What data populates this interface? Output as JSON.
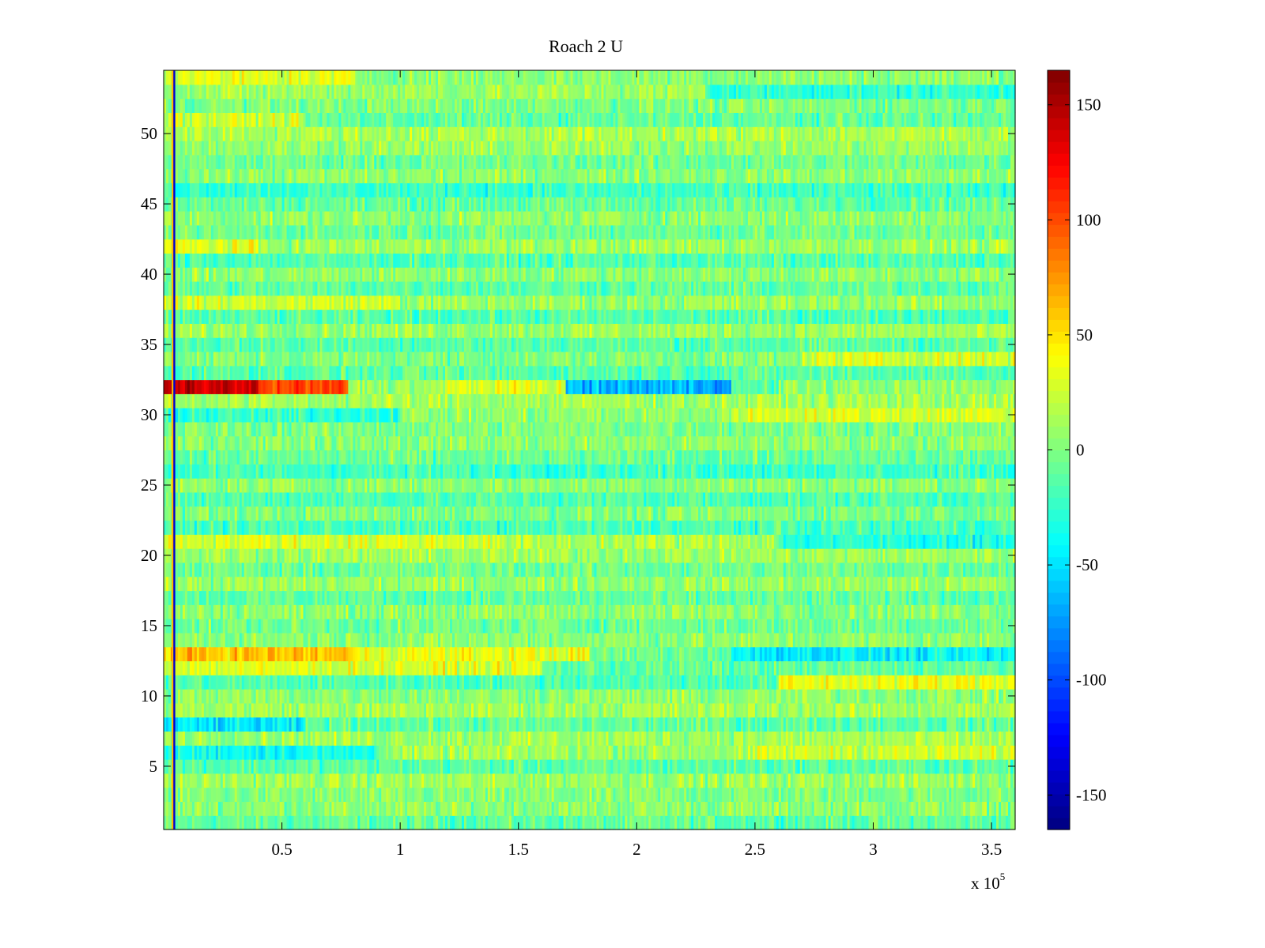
{
  "chart_data": {
    "type": "heatmap",
    "title": "Roach 2 U",
    "xlabel": "",
    "ylabel": "",
    "x_range": [
      0,
      360000
    ],
    "y_range": [
      0.5,
      54.5
    ],
    "x_ticks": [
      50000,
      100000,
      150000,
      200000,
      250000,
      300000,
      350000
    ],
    "x_tick_labels": [
      "0.5",
      "1",
      "1.5",
      "2",
      "2.5",
      "3",
      "3.5"
    ],
    "x_multiplier_label": "x 10",
    "x_multiplier_exponent": "5",
    "y_ticks": [
      5,
      10,
      15,
      20,
      25,
      30,
      35,
      40,
      45,
      50
    ],
    "y_tick_labels": [
      "5",
      "10",
      "15",
      "20",
      "25",
      "30",
      "35",
      "40",
      "45",
      "50"
    ],
    "colormap": "jet",
    "color_range": [
      -165,
      165
    ],
    "colorbar_ticks": [
      150,
      100,
      50,
      0,
      -50,
      -100,
      -150
    ],
    "colorbar_tick_labels": [
      "150",
      "100",
      "50",
      "0",
      "-50",
      "-100",
      "-150"
    ],
    "rows": 54,
    "columns": 360,
    "noise_amplitude": 34,
    "row_segments": [
      {
        "row": 54,
        "segments": [
          [
            0,
            80000,
            30
          ],
          [
            80000,
            360000,
            5
          ]
        ]
      },
      {
        "row": 53,
        "segments": [
          [
            0,
            230000,
            10
          ],
          [
            230000,
            360000,
            -25
          ]
        ]
      },
      {
        "row": 52,
        "segments": [
          [
            0,
            360000,
            0
          ]
        ]
      },
      {
        "row": 51,
        "segments": [
          [
            0,
            60000,
            25
          ],
          [
            60000,
            360000,
            -10
          ]
        ]
      },
      {
        "row": 50,
        "segments": [
          [
            0,
            360000,
            15
          ]
        ]
      },
      {
        "row": 49,
        "segments": [
          [
            0,
            360000,
            8
          ]
        ]
      },
      {
        "row": 48,
        "segments": [
          [
            0,
            360000,
            -5
          ]
        ]
      },
      {
        "row": 47,
        "segments": [
          [
            0,
            360000,
            5
          ]
        ]
      },
      {
        "row": 46,
        "segments": [
          [
            0,
            360000,
            -22
          ]
        ]
      },
      {
        "row": 45,
        "segments": [
          [
            0,
            360000,
            -8
          ]
        ]
      },
      {
        "row": 44,
        "segments": [
          [
            0,
            360000,
            5
          ]
        ]
      },
      {
        "row": 43,
        "segments": [
          [
            0,
            360000,
            -5
          ]
        ]
      },
      {
        "row": 42,
        "segments": [
          [
            0,
            40000,
            30
          ],
          [
            40000,
            360000,
            10
          ]
        ]
      },
      {
        "row": 41,
        "segments": [
          [
            0,
            360000,
            -15
          ]
        ]
      },
      {
        "row": 40,
        "segments": [
          [
            0,
            360000,
            5
          ]
        ]
      },
      {
        "row": 39,
        "segments": [
          [
            0,
            360000,
            -10
          ]
        ]
      },
      {
        "row": 38,
        "segments": [
          [
            0,
            100000,
            25
          ],
          [
            100000,
            360000,
            8
          ]
        ]
      },
      {
        "row": 37,
        "segments": [
          [
            0,
            360000,
            -15
          ]
        ]
      },
      {
        "row": 36,
        "segments": [
          [
            0,
            360000,
            10
          ]
        ]
      },
      {
        "row": 35,
        "segments": [
          [
            0,
            360000,
            -12
          ]
        ]
      },
      {
        "row": 34,
        "segments": [
          [
            0,
            270000,
            0
          ],
          [
            270000,
            360000,
            28
          ]
        ]
      },
      {
        "row": 33,
        "segments": [
          [
            0,
            360000,
            -12
          ]
        ]
      },
      {
        "row": 32,
        "segments": [
          [
            0,
            40000,
            140
          ],
          [
            40000,
            78000,
            100
          ],
          [
            78000,
            120000,
            10
          ],
          [
            120000,
            170000,
            30
          ],
          [
            170000,
            240000,
            -65
          ],
          [
            240000,
            260000,
            -15
          ],
          [
            260000,
            360000,
            5
          ]
        ]
      },
      {
        "row": 31,
        "segments": [
          [
            0,
            360000,
            12
          ]
        ]
      },
      {
        "row": 30,
        "segments": [
          [
            0,
            100000,
            -25
          ],
          [
            100000,
            240000,
            5
          ],
          [
            240000,
            360000,
            30
          ]
        ]
      },
      {
        "row": 29,
        "segments": [
          [
            0,
            360000,
            0
          ]
        ]
      },
      {
        "row": 28,
        "segments": [
          [
            0,
            360000,
            5
          ]
        ]
      },
      {
        "row": 27,
        "segments": [
          [
            0,
            360000,
            -8
          ]
        ]
      },
      {
        "row": 26,
        "segments": [
          [
            0,
            360000,
            -20
          ]
        ]
      },
      {
        "row": 25,
        "segments": [
          [
            0,
            360000,
            5
          ]
        ]
      },
      {
        "row": 24,
        "segments": [
          [
            0,
            360000,
            -15
          ]
        ]
      },
      {
        "row": 23,
        "segments": [
          [
            0,
            360000,
            0
          ]
        ]
      },
      {
        "row": 22,
        "segments": [
          [
            0,
            360000,
            -18
          ]
        ]
      },
      {
        "row": 21,
        "segments": [
          [
            0,
            140000,
            30
          ],
          [
            140000,
            260000,
            15
          ],
          [
            260000,
            360000,
            -30
          ]
        ]
      },
      {
        "row": 20,
        "segments": [
          [
            0,
            360000,
            10
          ]
        ]
      },
      {
        "row": 19,
        "segments": [
          [
            0,
            360000,
            -5
          ]
        ]
      },
      {
        "row": 18,
        "segments": [
          [
            0,
            360000,
            8
          ]
        ]
      },
      {
        "row": 17,
        "segments": [
          [
            0,
            360000,
            -10
          ]
        ]
      },
      {
        "row": 16,
        "segments": [
          [
            0,
            360000,
            5
          ]
        ]
      },
      {
        "row": 15,
        "segments": [
          [
            0,
            360000,
            -5
          ]
        ]
      },
      {
        "row": 14,
        "segments": [
          [
            0,
            360000,
            5
          ]
        ]
      },
      {
        "row": 13,
        "segments": [
          [
            0,
            80000,
            60
          ],
          [
            80000,
            180000,
            35
          ],
          [
            180000,
            240000,
            -5
          ],
          [
            240000,
            360000,
            -45
          ]
        ]
      },
      {
        "row": 12,
        "segments": [
          [
            0,
            160000,
            30
          ],
          [
            160000,
            360000,
            -10
          ]
        ]
      },
      {
        "row": 11,
        "segments": [
          [
            0,
            260000,
            -15
          ],
          [
            260000,
            360000,
            35
          ]
        ]
      },
      {
        "row": 10,
        "segments": [
          [
            0,
            360000,
            5
          ]
        ]
      },
      {
        "row": 9,
        "segments": [
          [
            0,
            360000,
            12
          ]
        ]
      },
      {
        "row": 8,
        "segments": [
          [
            0,
            60000,
            -50
          ],
          [
            60000,
            360000,
            -10
          ]
        ]
      },
      {
        "row": 7,
        "segments": [
          [
            0,
            360000,
            12
          ]
        ]
      },
      {
        "row": 6,
        "segments": [
          [
            0,
            90000,
            -35
          ],
          [
            90000,
            250000,
            10
          ],
          [
            250000,
            360000,
            25
          ]
        ]
      },
      {
        "row": 5,
        "segments": [
          [
            0,
            360000,
            -12
          ]
        ]
      },
      {
        "row": 4,
        "segments": [
          [
            0,
            360000,
            10
          ]
        ]
      },
      {
        "row": 3,
        "segments": [
          [
            0,
            360000,
            0
          ]
        ]
      },
      {
        "row": 2,
        "segments": [
          [
            0,
            360000,
            5
          ]
        ]
      },
      {
        "row": 1,
        "segments": [
          [
            0,
            360000,
            -10
          ]
        ]
      }
    ],
    "vertical_lines": [
      {
        "x": 3800,
        "value": 65
      },
      {
        "x": 4500,
        "value": -140
      }
    ]
  }
}
